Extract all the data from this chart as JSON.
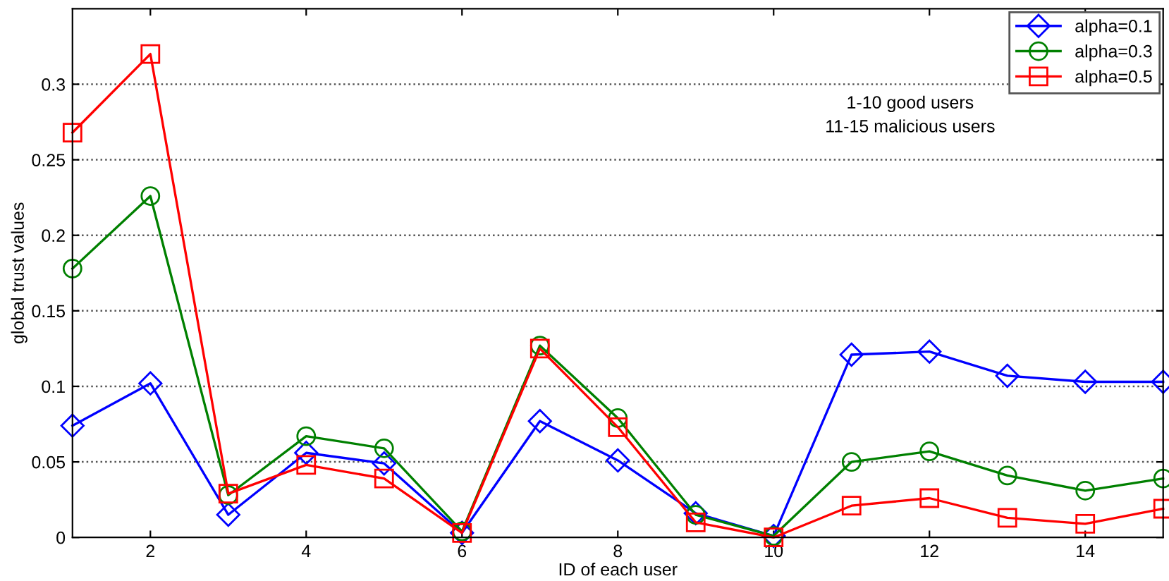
{
  "chart_data": {
    "type": "line",
    "xlabel": "ID of each user",
    "ylabel": "global trust values",
    "x": [
      1,
      2,
      3,
      4,
      5,
      6,
      7,
      8,
      9,
      10,
      11,
      12,
      13,
      14,
      15
    ],
    "series": [
      {
        "name": "alpha=0.1",
        "color": "#0000ff",
        "marker": "diamond",
        "values": [
          0.074,
          0.102,
          0.015,
          0.056,
          0.049,
          0.003,
          0.077,
          0.051,
          0.016,
          0.001,
          0.121,
          0.123,
          0.107,
          0.103,
          0.103
        ]
      },
      {
        "name": "alpha=0.3",
        "color": "#008000",
        "marker": "circle",
        "values": [
          0.178,
          0.226,
          0.028,
          0.067,
          0.059,
          0.004,
          0.127,
          0.079,
          0.015,
          0.001,
          0.05,
          0.057,
          0.041,
          0.031,
          0.039
        ]
      },
      {
        "name": "alpha=0.5",
        "color": "#ff0000",
        "marker": "square",
        "values": [
          0.268,
          0.32,
          0.029,
          0.048,
          0.039,
          0.003,
          0.125,
          0.073,
          0.01,
          0.0,
          0.021,
          0.026,
          0.013,
          0.009,
          0.019
        ]
      }
    ],
    "xlim": [
      1,
      15
    ],
    "xticks": [
      2,
      4,
      6,
      8,
      10,
      12,
      14
    ],
    "ylim": [
      0,
      0.35
    ],
    "yticks": [
      0,
      0.05,
      0.1,
      0.15,
      0.2,
      0.25,
      0.3
    ],
    "grid": "y",
    "legend": "top right",
    "line_style": "solid",
    "annotations": [
      "1-10 good users",
      "11-15 malicious users"
    ]
  }
}
